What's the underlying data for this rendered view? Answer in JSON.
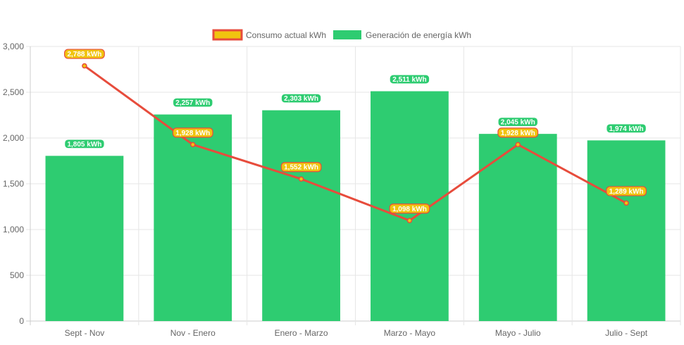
{
  "chart_data": {
    "type": "bar",
    "categories": [
      "Sept - Nov",
      "Nov - Enero",
      "Enero - Marzo",
      "Marzo - Mayo",
      "Mayo - Julio",
      "Julio - Sept"
    ],
    "ylim": [
      0,
      3000
    ],
    "yticks": [
      0,
      500,
      1000,
      1500,
      2000,
      2500,
      3000
    ],
    "ytick_labels": [
      "0",
      "500",
      "1,000",
      "1,500",
      "2,000",
      "2,500",
      "3,000"
    ],
    "grid": true,
    "legend_position": "top-center",
    "series": [
      {
        "name": "Consumo actual kWh",
        "type": "line",
        "color": "#e74c3c",
        "fill_color": "#f1c40f",
        "values": [
          2788,
          1928,
          1552,
          1098,
          1928,
          1289
        ],
        "labels": [
          "2,788 kWh",
          "1,928 kWh",
          "1,552 kWh",
          "1,098 kWh",
          "1,928 kWh",
          "1,289 kWh"
        ]
      },
      {
        "name": "Generación de energía kWh",
        "type": "bar",
        "color": "#2ecc71",
        "values": [
          1805,
          2257,
          2303,
          2511,
          2045,
          1974
        ],
        "labels": [
          "1,805 kWh",
          "2,257 kWh",
          "2,303 kWh",
          "2,511 kWh",
          "2,045 kWh",
          "1,974 kWh"
        ]
      }
    ]
  }
}
